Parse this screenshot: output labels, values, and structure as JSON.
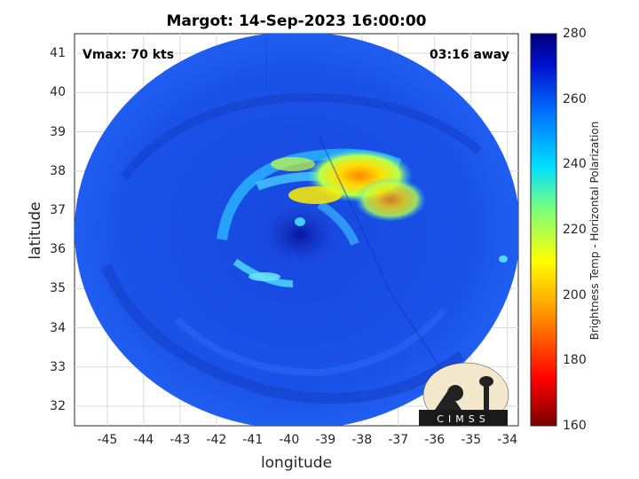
{
  "plot": {
    "title": "Margot: 14-Sep-2023 16:00:00",
    "xlabel": "longitude",
    "ylabel": "latitude",
    "vmax_label": "Vmax: 70 kts",
    "away_label": "03:16 away"
  },
  "axes": {
    "x_range": [
      -45.9,
      -33.7
    ],
    "y_range": [
      31.5,
      41.5
    ],
    "x_ticks": [
      "-45",
      "-44",
      "-43",
      "-42",
      "-41",
      "-40",
      "-39",
      "-38",
      "-37",
      "-36",
      "-35",
      "-34"
    ],
    "y_ticks": [
      "41",
      "40",
      "39",
      "38",
      "37",
      "36",
      "35",
      "34",
      "33",
      "32"
    ]
  },
  "colorbar": {
    "label": "Brightness Temp - Horizontal Polarization",
    "ticks": [
      "280",
      "260",
      "240",
      "220",
      "200",
      "180",
      "160"
    ],
    "min": 160,
    "max": 280
  },
  "logo": {
    "text": "CIMSS"
  },
  "colors": {
    "background_blue": "#1a4fe0",
    "deep_blue": "#0a1a9a",
    "cyan": "#22d6ff",
    "yellow": "#ffee00",
    "orange": "#ff9a00"
  }
}
